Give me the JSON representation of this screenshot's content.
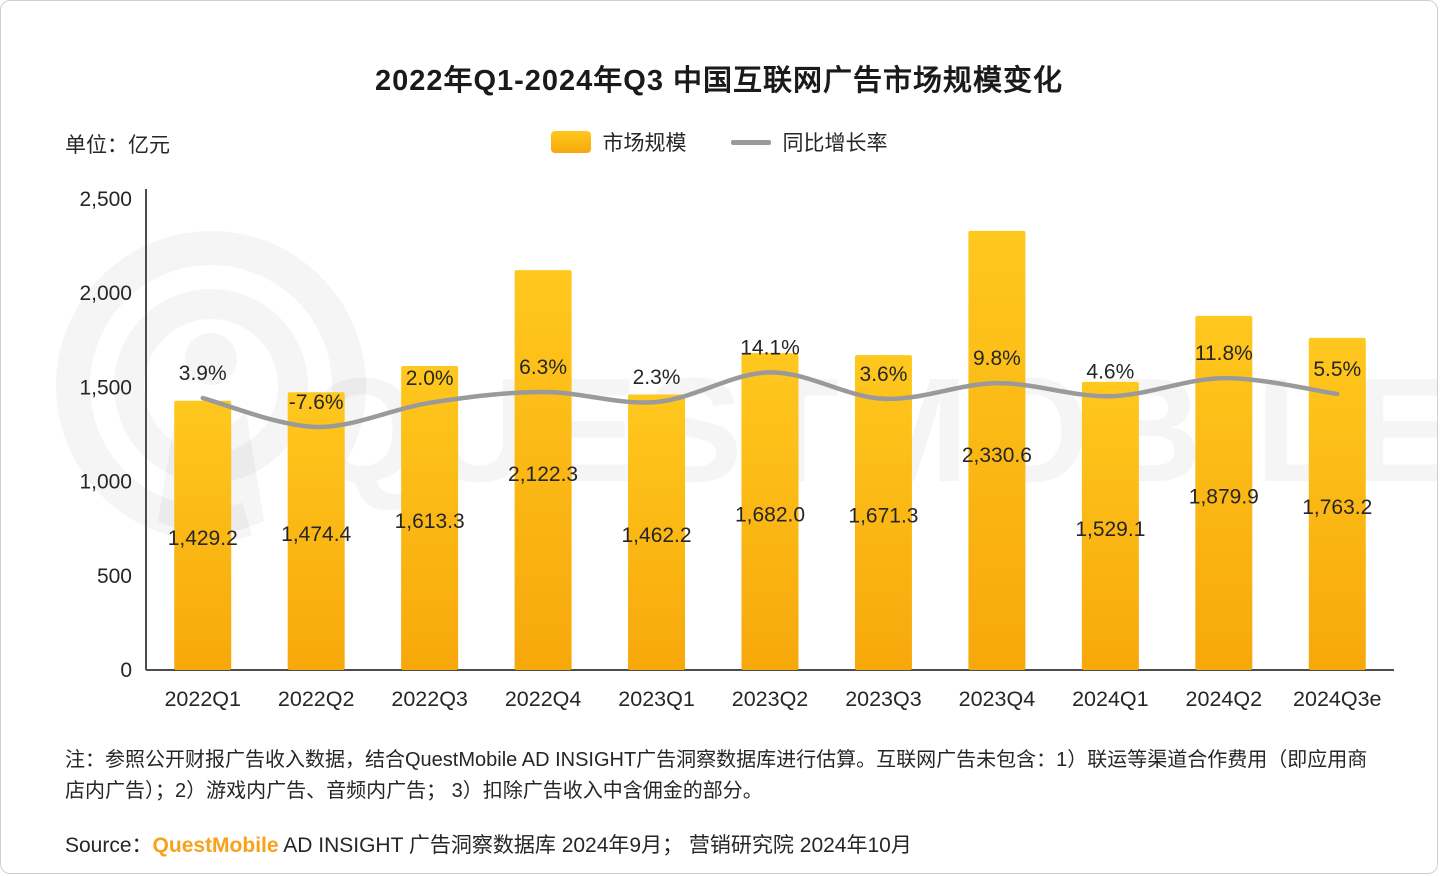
{
  "header": {
    "title": "2022年Q1-2024年Q3 中国互联网广告市场规模变化",
    "unit_label": "单位：亿元"
  },
  "legend": {
    "bar_label": "市场规模",
    "line_label": "同比增长率"
  },
  "colors": {
    "bar_top": "#FFC81E",
    "bar_bottom": "#F7A80B",
    "line": "#9a9a9a",
    "axis": "#4d4d4d",
    "text": "#262626",
    "brand_orange": "#F8A11B",
    "watermark": "rgba(120,120,120,0.07)"
  },
  "watermark": {
    "text": "QUESTMOBILE"
  },
  "chart_data": {
    "type": "bar+line",
    "categories": [
      "2022Q1",
      "2022Q2",
      "2022Q3",
      "2022Q4",
      "2023Q1",
      "2023Q2",
      "2023Q3",
      "2023Q4",
      "2024Q1",
      "2024Q2",
      "2024Q3e"
    ],
    "series": [
      {
        "name": "市场规模",
        "type": "bar",
        "values": [
          1429.2,
          1474.4,
          1613.3,
          2122.3,
          1462.2,
          1682.0,
          1671.3,
          2330.6,
          1529.1,
          1879.9,
          1763.2
        ],
        "labels": [
          "1,429.2",
          "1,474.4",
          "1,613.3",
          "2,122.3",
          "1,462.2",
          "1,682.0",
          "1,671.3",
          "2,330.6",
          "1,529.1",
          "1,879.9",
          "1,763.2"
        ]
      },
      {
        "name": "同比增长率",
        "type": "line",
        "values": [
          3.9,
          -7.6,
          2.0,
          6.3,
          2.3,
          14.1,
          3.6,
          9.8,
          4.6,
          11.8,
          5.5
        ],
        "labels": [
          "3.9%",
          "-7.6%",
          "2.0%",
          "6.3%",
          "2.3%",
          "14.1%",
          "3.6%",
          "9.8%",
          "4.6%",
          "11.8%",
          "5.5%"
        ]
      }
    ],
    "ylabel": "亿元",
    "ylim": [
      0,
      2500
    ],
    "yticks": [
      0,
      500,
      1000,
      1500,
      2000,
      2500
    ],
    "ytick_labels": [
      "0",
      "500",
      "1,000",
      "1,500",
      "2,000",
      "2,500"
    ],
    "grid": false,
    "legend_position": "top"
  },
  "notes": {
    "text": "注：参照公开财报广告收入数据，结合QuestMobile AD INSIGHT广告洞察数据库进行估算。互联网广告未包含：1）联运等渠道合作费用（即应用商店内广告）；2）游戏内广告、音频内广告； 3）扣除广告收入中含佣金的部分。"
  },
  "source": {
    "prefix": "Source：",
    "brand": "QuestMobile",
    "rest": " AD INSIGHT 广告洞察数据库 2024年9月； 营销研究院 2024年10月"
  }
}
